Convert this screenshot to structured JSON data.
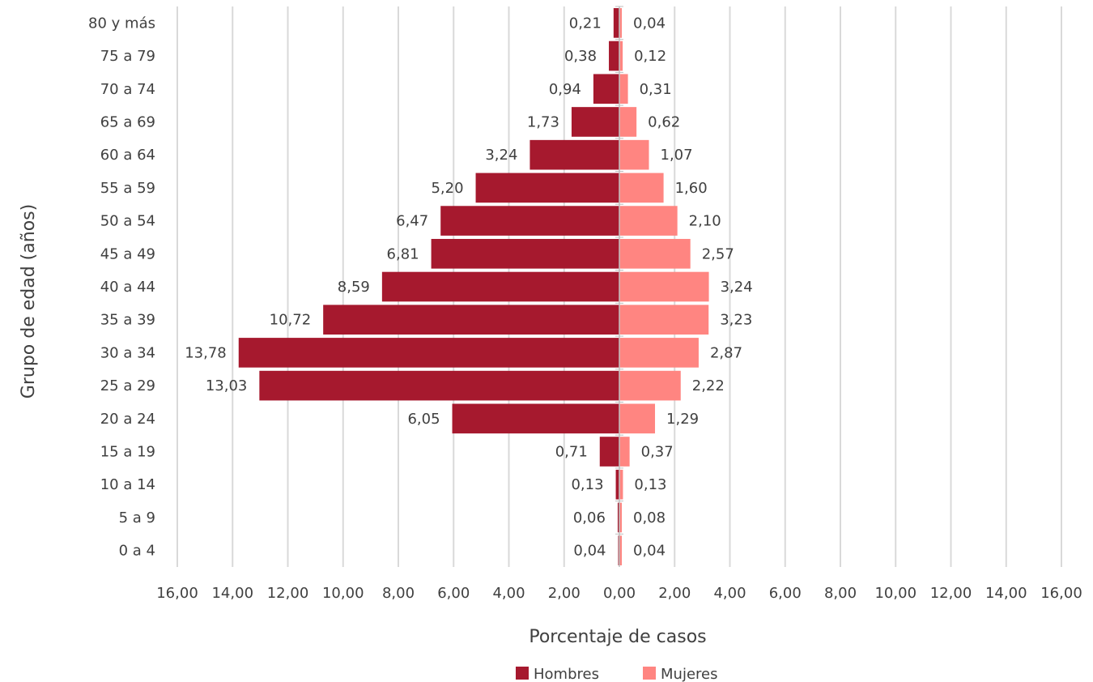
{
  "chart_data": {
    "type": "bar",
    "orientation": "horizontal",
    "layout": "population-pyramid",
    "xlabel": "Porcentaje de casos",
    "ylabel": "Grupo de edad (años)",
    "xlim": [
      -16,
      16
    ],
    "grid": true,
    "legend_position": "bottom",
    "x_tick_labels": [
      "16,00",
      "14,00",
      "12,00",
      "10,00",
      "8,00",
      "6,00",
      "4,00",
      "2,00",
      "0,00",
      "2,00",
      "4,00",
      "6,00",
      "8,00",
      "10,00",
      "12,00",
      "14,00",
      "16,00"
    ],
    "categories": [
      "80  y más",
      "75 a 79",
      "70 a 74",
      "65 a 69",
      "60 a 64",
      "55 a 59",
      "50 a 54",
      "45 a 49",
      "40 a 44",
      "35 a 39",
      "30 a 34",
      "25 a 29",
      "20 a 24",
      "15 a 19",
      "10 a 14",
      "5 a 9",
      "0 a 4"
    ],
    "series": [
      {
        "name": "Hombres",
        "color": "#a6192e",
        "side": "left",
        "values": [
          0.21,
          0.38,
          0.94,
          1.73,
          3.24,
          5.2,
          6.47,
          6.81,
          8.59,
          10.72,
          13.78,
          13.03,
          6.05,
          0.71,
          0.13,
          0.06,
          0.04
        ],
        "labels": [
          "0,21",
          "0,38",
          "0,94",
          "1,73",
          "3,24",
          "5,20",
          "6,47",
          "6,81",
          "8,59",
          "10,72",
          "13,78",
          "13,03",
          "6,05",
          "0,71",
          "0,13",
          "0,06",
          "0,04"
        ]
      },
      {
        "name": "Mujeres",
        "color": "#ff8581",
        "side": "right",
        "values": [
          0.04,
          0.12,
          0.31,
          0.62,
          1.07,
          1.6,
          2.1,
          2.57,
          3.24,
          3.23,
          2.87,
          2.22,
          1.29,
          0.37,
          0.13,
          0.08,
          0.04
        ],
        "labels": [
          "0,04",
          "0,12",
          "0,31",
          "0,62",
          "1,07",
          "1,60",
          "2,10",
          "2,57",
          "3,24",
          "3,23",
          "2,87",
          "2,22",
          "1,29",
          "0,37",
          "0,13",
          "0,08",
          "0,04"
        ]
      }
    ]
  }
}
